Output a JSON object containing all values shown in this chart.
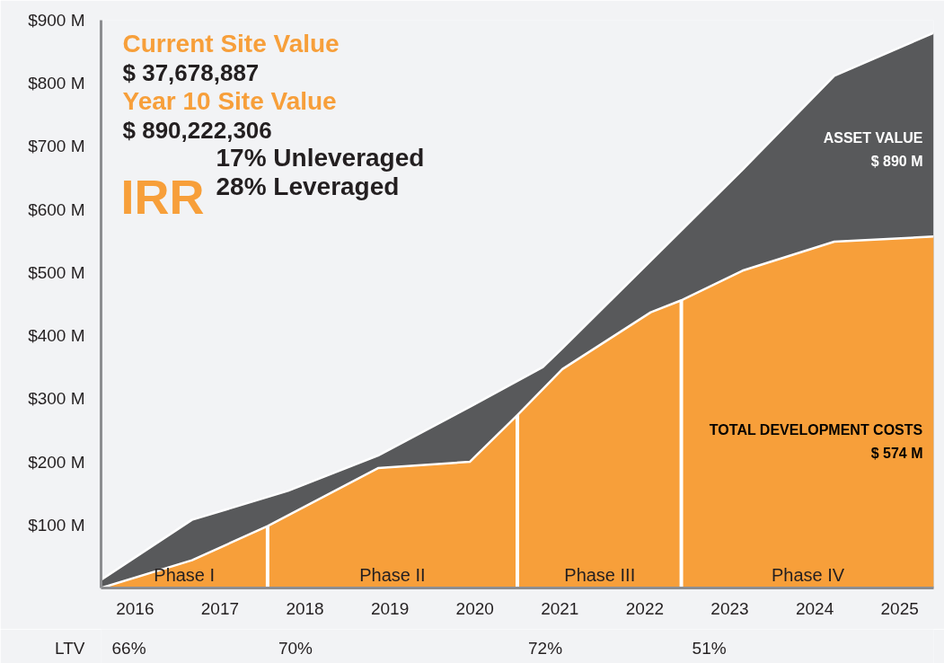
{
  "chart_data": {
    "type": "area",
    "annotations": [
      "Current Site Value",
      "$ 37,678,887",
      "Year 10 Site Value",
      "$ 890,222,306",
      "IRR",
      "17% Unleveraged",
      "28% Leveraged",
      "LTV",
      "66%",
      "70%",
      "72%",
      "51%",
      {
        "text": "Phase I",
        "x": 2016.58,
        "y": 0
      },
      {
        "text": "Phase II",
        "x": 2019.03,
        "y": 0
      },
      {
        "text": "Phase III",
        "x": 2021.47,
        "y": 0
      },
      {
        "text": "Phase IV",
        "x": 2023.92,
        "y": 0
      }
    ],
    "series": [
      {
        "name": "ASSET VALUE\n$ 890 M",
        "color": "#58595b",
        "x": [
          2015.6,
          2016.67,
          2017.8,
          2018.86,
          2019.94,
          2020.8,
          2021.03,
          2023.15,
          2024.23,
          2025.4
        ],
        "values": [
          13,
          108,
          154,
          210,
          287,
          350,
          380,
          663,
          812,
          880
        ]
      },
      {
        "name": "TOTAL DEVELOPMENT COSTS\n$ 574 M",
        "color": "#f79f3a",
        "x": [
          2015.6,
          2016.67,
          2017.56,
          2018.86,
          2019.94,
          2020.5,
          2021.03,
          2022.07,
          2022.43,
          2023.15,
          2024.23,
          2025.4
        ],
        "values": [
          0,
          44,
          98,
          190,
          200,
          274,
          347,
          437,
          456,
          503,
          549,
          557
        ]
      }
    ],
    "ref_lines": [
      {
        "axis": "x",
        "value": 2017.56,
        "color": "#ffffff"
      },
      {
        "axis": "x",
        "value": 2020.5,
        "color": "#ffffff"
      },
      {
        "axis": "x",
        "value": 2022.43,
        "color": "#ffffff"
      }
    ],
    "xlim": [
      2015.6,
      2025.4
    ],
    "xticks": [
      2016,
      2017,
      2018,
      2019,
      2020,
      2021,
      2022,
      2023,
      2024,
      2025
    ],
    "ylim": [
      0,
      900
    ],
    "yticks": [
      {
        "value": 100,
        "label": "$100 M"
      },
      {
        "value": 200,
        "label": "$200 M"
      },
      {
        "value": 300,
        "label": "$300 M"
      },
      {
        "value": 400,
        "label": "$400 M"
      },
      {
        "value": 500,
        "label": "$500 M"
      },
      {
        "value": 600,
        "label": "$600 M"
      },
      {
        "value": 700,
        "label": "$700 M"
      },
      {
        "value": 800,
        "label": "$800 M"
      },
      {
        "value": 900,
        "label": "$900 M"
      }
    ],
    "grid": false
  }
}
